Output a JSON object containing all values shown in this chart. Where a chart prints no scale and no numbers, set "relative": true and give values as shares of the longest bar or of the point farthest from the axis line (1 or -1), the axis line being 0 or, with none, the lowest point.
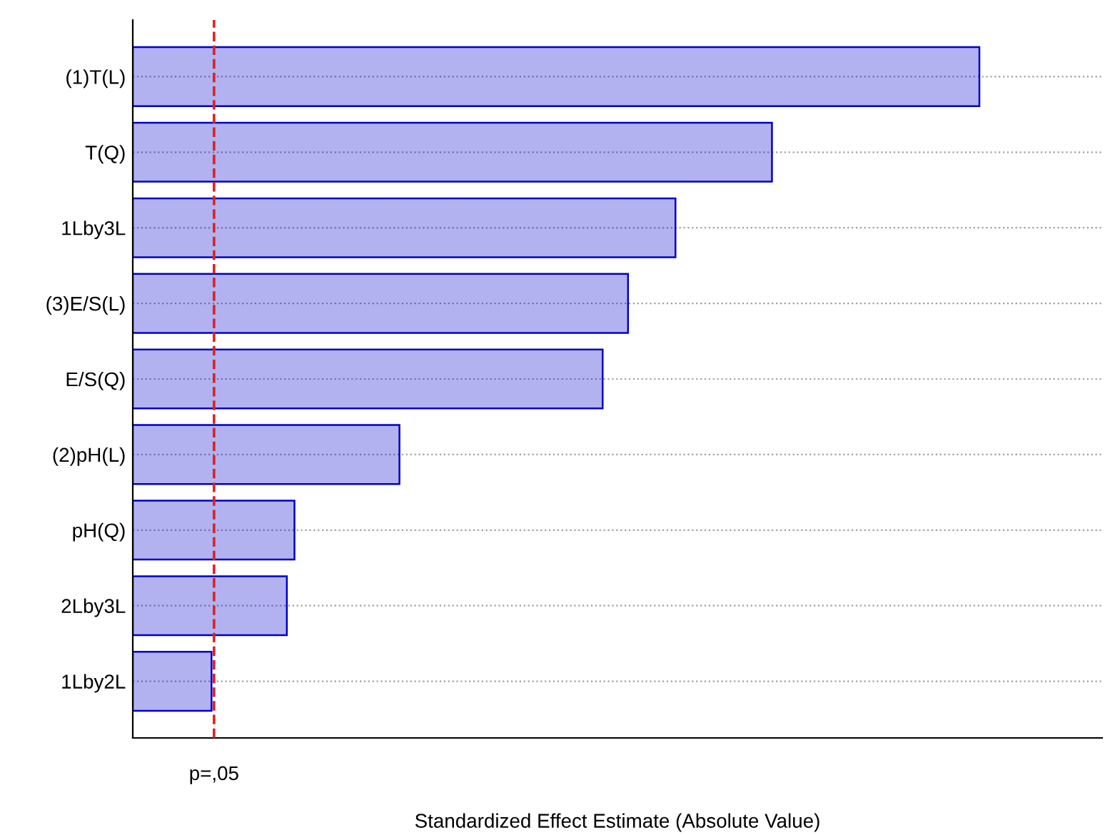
{
  "chart_data": {
    "type": "bar",
    "orientation": "horizontal",
    "relative": true,
    "xlabel": "Standardized Effect Estimate (Absolute Value)",
    "categories": [
      "(1)T(L)",
      "T(Q)",
      "1Lby3L",
      "(3)E/S(L)",
      "E/S(Q)",
      "(2)pH(L)",
      "pH(Q)",
      "2Lby3L",
      "1Lby2L"
    ],
    "values": [
      1,
      0.755,
      0.641,
      0.585,
      0.555,
      0.315,
      0.191,
      0.182,
      0.093
    ],
    "color": "#0000cc",
    "ref_lines": [
      {
        "axis": "x",
        "value": 0.096,
        "label": "p=,05",
        "color": "#e02020",
        "line_style": "dashed"
      }
    ],
    "grid": "y"
  }
}
